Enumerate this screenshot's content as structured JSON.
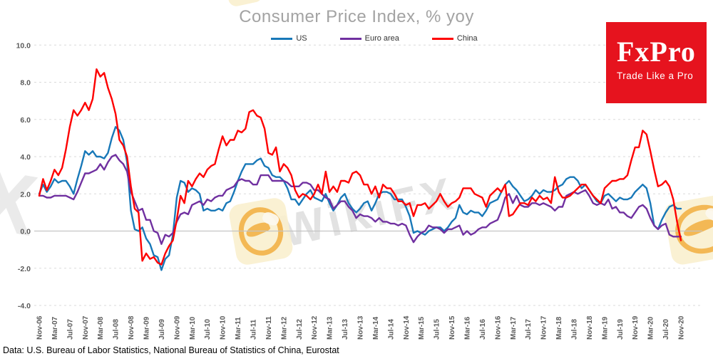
{
  "title": "Consumer Price Index, % yoy",
  "source_note": "Data: U.S. Bureau of Labor Statistics, National Bureau of Statistics of China, Eurostat",
  "logo": {
    "brand": "FxPro",
    "tagline": "Trade Like a Pro",
    "bg_color": "#e6131e"
  },
  "watermarks": {
    "text_main": "WikiFX",
    "text_partial": "X"
  },
  "chart_data": {
    "type": "line",
    "title": "Consumer Price Index, % yoy",
    "xlabel": "",
    "ylabel": "",
    "ylim": [
      -4,
      10
    ],
    "grid": "horizontal-dashed",
    "legend_position": "top-center",
    "x_range": [
      "Nov-06",
      "Nov-20"
    ],
    "x_frequency": "monthly",
    "y_ticks": [
      10,
      8,
      6,
      4,
      2,
      0,
      -2,
      -4
    ],
    "y_tick_labels": [
      "10.0",
      "8.0",
      "6.0",
      "4.0",
      "2.0",
      "0.0",
      "-2.0",
      "-4.0"
    ],
    "x_tick_every_n_months": 4,
    "x_tick_labels": [
      "Nov-06",
      "Mar-07",
      "Jul-07",
      "Nov-07",
      "Mar-08",
      "Jul-08",
      "Nov-08",
      "Mar-09",
      "Jul-09",
      "Nov-09",
      "Mar-10",
      "Jul-10",
      "Nov-10",
      "Mar-11",
      "Jul-11",
      "Nov-11",
      "Mar-12",
      "Jul-12",
      "Nov-12",
      "Mar-13",
      "Jul-13",
      "Nov-13",
      "Mar-14",
      "Jul-14",
      "Nov-14",
      "Mar-15",
      "Jul-15",
      "Nov-15",
      "Mar-16",
      "Jul-16",
      "Nov-16",
      "Mar-17",
      "Jul-17",
      "Nov-17",
      "Mar-18",
      "Jul-18",
      "Nov-18",
      "Mar-19",
      "Jul-19",
      "Nov-19",
      "Mar-20",
      "Jul-20",
      "Nov-20"
    ],
    "series": [
      {
        "name": "US",
        "color": "#1878b8",
        "values": [
          2.0,
          2.5,
          2.1,
          2.4,
          2.8,
          2.6,
          2.7,
          2.7,
          2.4,
          2.0,
          2.8,
          3.5,
          4.3,
          4.1,
          4.3,
          4.0,
          4.0,
          3.9,
          4.2,
          5.0,
          5.6,
          5.4,
          4.9,
          3.7,
          1.1,
          0.1,
          0.0,
          0.2,
          -0.4,
          -0.7,
          -1.3,
          -1.4,
          -2.1,
          -1.5,
          -1.3,
          -0.2,
          1.8,
          2.7,
          2.6,
          2.1,
          2.3,
          2.2,
          2.0,
          1.1,
          1.2,
          1.1,
          1.1,
          1.2,
          1.1,
          1.5,
          1.6,
          2.1,
          2.7,
          3.2,
          3.6,
          3.6,
          3.6,
          3.8,
          3.9,
          3.5,
          3.4,
          3.0,
          2.9,
          2.9,
          2.7,
          2.3,
          1.7,
          1.7,
          1.4,
          1.7,
          2.0,
          2.2,
          1.8,
          1.7,
          1.6,
          2.0,
          1.5,
          1.1,
          1.4,
          1.8,
          2.0,
          1.5,
          1.2,
          1.0,
          1.2,
          1.5,
          1.6,
          1.1,
          1.5,
          2.0,
          2.1,
          2.1,
          2.0,
          1.7,
          1.7,
          1.7,
          1.3,
          0.8,
          -0.1,
          0.0,
          -0.1,
          -0.2,
          0.0,
          0.1,
          0.2,
          0.2,
          0.0,
          0.2,
          0.5,
          0.7,
          1.4,
          1.0,
          0.9,
          1.1,
          1.0,
          1.0,
          0.8,
          1.1,
          1.5,
          1.6,
          1.7,
          2.1,
          2.5,
          2.7,
          2.4,
          2.2,
          1.9,
          1.6,
          1.7,
          1.9,
          2.2,
          2.0,
          2.2,
          2.1,
          2.1,
          2.2,
          2.4,
          2.5,
          2.8,
          2.9,
          2.9,
          2.7,
          2.3,
          2.5,
          2.2,
          1.9,
          1.6,
          1.5,
          1.9,
          2.0,
          1.8,
          1.6,
          1.8,
          1.7,
          1.7,
          1.8,
          2.1,
          2.3,
          2.5,
          2.3,
          1.5,
          0.3,
          0.1,
          0.6,
          1.0,
          1.3,
          1.4,
          1.2,
          1.2
        ]
      },
      {
        "name": "Euro area",
        "color": "#7030a0",
        "values": [
          1.9,
          1.9,
          1.8,
          1.8,
          1.9,
          1.9,
          1.9,
          1.9,
          1.8,
          1.7,
          2.1,
          2.6,
          3.1,
          3.1,
          3.2,
          3.3,
          3.6,
          3.3,
          3.7,
          4.0,
          4.1,
          3.8,
          3.6,
          3.2,
          2.1,
          1.6,
          1.1,
          1.2,
          0.6,
          0.6,
          0.0,
          -0.1,
          -0.7,
          -0.2,
          -0.3,
          -0.1,
          0.5,
          0.9,
          1.0,
          0.9,
          1.4,
          1.5,
          1.6,
          1.4,
          1.7,
          1.6,
          1.8,
          1.9,
          1.9,
          2.2,
          2.3,
          2.4,
          2.7,
          2.8,
          2.7,
          2.7,
          2.5,
          2.5,
          3.0,
          3.0,
          3.0,
          2.7,
          2.7,
          2.7,
          2.7,
          2.6,
          2.4,
          2.4,
          2.4,
          2.6,
          2.6,
          2.5,
          2.2,
          2.2,
          2.0,
          1.8,
          1.7,
          1.2,
          1.4,
          1.6,
          1.6,
          1.3,
          1.1,
          0.7,
          0.9,
          0.8,
          0.8,
          0.7,
          0.5,
          0.7,
          0.5,
          0.5,
          0.4,
          0.4,
          0.3,
          0.4,
          0.3,
          -0.2,
          -0.6,
          -0.3,
          -0.1,
          0.0,
          0.3,
          0.2,
          0.2,
          0.1,
          -0.1,
          0.1,
          0.1,
          0.2,
          0.3,
          -0.2,
          0.0,
          -0.2,
          -0.1,
          0.1,
          0.2,
          0.2,
          0.4,
          0.5,
          0.6,
          1.1,
          1.8,
          2.0,
          1.5,
          1.9,
          1.4,
          1.3,
          1.3,
          1.5,
          1.5,
          1.4,
          1.5,
          1.4,
          1.3,
          1.1,
          1.3,
          1.3,
          1.9,
          2.0,
          2.1,
          2.0,
          2.1,
          2.2,
          1.9,
          1.5,
          1.4,
          1.5,
          1.4,
          1.7,
          1.2,
          1.3,
          1.0,
          1.0,
          0.8,
          0.7,
          1.0,
          1.3,
          1.4,
          1.2,
          0.7,
          0.3,
          0.1,
          0.3,
          0.4,
          -0.2,
          -0.3,
          -0.3,
          -0.3
        ]
      },
      {
        "name": "China",
        "color": "#fe0000",
        "values": [
          1.9,
          2.8,
          2.2,
          2.7,
          3.3,
          3.0,
          3.4,
          4.4,
          5.6,
          6.5,
          6.2,
          6.5,
          6.9,
          6.5,
          7.1,
          8.7,
          8.3,
          8.5,
          7.7,
          7.1,
          6.3,
          4.9,
          4.6,
          4.0,
          2.4,
          1.2,
          1.0,
          -1.6,
          -1.2,
          -1.5,
          -1.4,
          -1.7,
          -1.8,
          -1.2,
          -0.8,
          -0.5,
          0.6,
          1.9,
          1.5,
          2.7,
          2.4,
          2.8,
          3.1,
          2.9,
          3.3,
          3.5,
          3.6,
          4.4,
          5.1,
          4.6,
          4.9,
          4.9,
          5.4,
          5.3,
          5.5,
          6.4,
          6.5,
          6.2,
          6.1,
          5.5,
          4.2,
          4.1,
          4.5,
          3.2,
          3.6,
          3.4,
          3.0,
          2.2,
          1.8,
          2.0,
          1.9,
          1.7,
          2.0,
          2.5,
          2.0,
          3.2,
          2.1,
          2.4,
          2.1,
          2.7,
          2.7,
          2.6,
          3.1,
          3.2,
          3.0,
          2.5,
          2.5,
          2.0,
          2.4,
          1.8,
          2.5,
          2.3,
          2.3,
          2.0,
          1.6,
          1.6,
          1.4,
          1.5,
          0.8,
          1.4,
          1.4,
          1.5,
          1.2,
          1.4,
          1.6,
          2.0,
          1.6,
          1.3,
          1.5,
          1.6,
          1.8,
          2.3,
          2.3,
          2.3,
          2.0,
          1.9,
          1.8,
          1.3,
          1.9,
          2.1,
          2.3,
          2.1,
          2.5,
          0.8,
          0.9,
          1.2,
          1.5,
          1.5,
          1.4,
          1.8,
          1.6,
          1.9,
          1.7,
          1.8,
          1.5,
          2.9,
          2.1,
          1.8,
          1.8,
          1.9,
          2.1,
          2.3,
          2.5,
          2.5,
          2.2,
          1.9,
          1.7,
          1.5,
          2.3,
          2.5,
          2.7,
          2.7,
          2.8,
          2.8,
          3.0,
          3.8,
          4.5,
          4.5,
          5.4,
          5.2,
          4.3,
          3.3,
          2.4,
          2.5,
          2.7,
          2.4,
          1.7,
          0.5,
          -0.5
        ]
      }
    ]
  }
}
